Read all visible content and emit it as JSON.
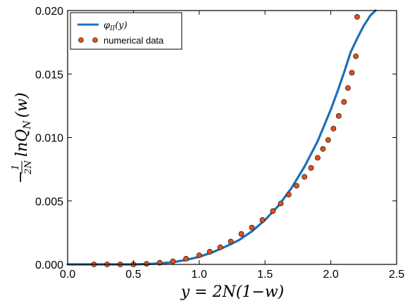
{
  "chart_data": {
    "type": "line",
    "title": "",
    "xlabel": "y = 2N(1−w)",
    "ylabel_prefix": "−",
    "ylabel_frac_num": "1",
    "ylabel_frac_den": "2N",
    "ylabel_main": "lnQ",
    "ylabel_sub": "N",
    "ylabel_arg": "(w)",
    "xlim": [
      0.0,
      2.5
    ],
    "ylim": [
      0.0,
      0.02
    ],
    "xticks": [
      0.0,
      0.5,
      1.0,
      1.5,
      2.0,
      2.5
    ],
    "xtick_labels": [
      "0.0",
      "0.5",
      "1.0",
      "1.5",
      "2.0",
      "2.5"
    ],
    "yticks": [
      0.0,
      0.005,
      0.01,
      0.015,
      0.02
    ],
    "ytick_labels": [
      "0.000",
      "0.005",
      "0.010",
      "0.015",
      "0.020"
    ],
    "grid": false,
    "legend_position": "top-left",
    "colors": {
      "line": "#1f6fb8",
      "points": "#e0501e",
      "point_edge": "#000000"
    },
    "series": [
      {
        "name": "φII(y)",
        "name_main": "φ",
        "name_sub": "II",
        "name_arg": "(y)",
        "kind": "line",
        "x": [
          0.0,
          0.2,
          0.4,
          0.5,
          0.6,
          0.7,
          0.8,
          0.9,
          1.0,
          1.1,
          1.2,
          1.3,
          1.4,
          1.5,
          1.6,
          1.7,
          1.8,
          1.9,
          2.0,
          2.05,
          2.1,
          2.15,
          2.2,
          2.25,
          2.3,
          2.34
        ],
        "y": [
          0.0,
          0.0,
          0.0,
          0.0,
          3e-05,
          8e-05,
          0.00018,
          0.00035,
          0.0006,
          0.00095,
          0.0014,
          0.0019,
          0.0026,
          0.0035,
          0.0046,
          0.006,
          0.0077,
          0.0097,
          0.0122,
          0.0136,
          0.0151,
          0.0167,
          0.0178,
          0.0188,
          0.0196,
          0.02
        ]
      },
      {
        "name": "numerical data",
        "kind": "scatter",
        "x": [
          0.2,
          0.3,
          0.4,
          0.5,
          0.6,
          0.7,
          0.8,
          0.9,
          1.0,
          1.08,
          1.16,
          1.24,
          1.32,
          1.4,
          1.48,
          1.56,
          1.62,
          1.68,
          1.74,
          1.8,
          1.85,
          1.9,
          1.94,
          1.98,
          2.02,
          2.06,
          2.1,
          2.13,
          2.16,
          2.19,
          2.2
        ],
        "y": [
          0.0,
          0.0,
          0.0,
          0.0,
          5e-05,
          0.00013,
          0.00024,
          0.00045,
          0.00072,
          0.001,
          0.00135,
          0.0018,
          0.0024,
          0.0029,
          0.0035,
          0.0042,
          0.0048,
          0.0055,
          0.0062,
          0.0069,
          0.0076,
          0.0084,
          0.0091,
          0.0098,
          0.0107,
          0.0117,
          0.0128,
          0.0139,
          0.0151,
          0.0164,
          0.0195
        ]
      }
    ]
  }
}
